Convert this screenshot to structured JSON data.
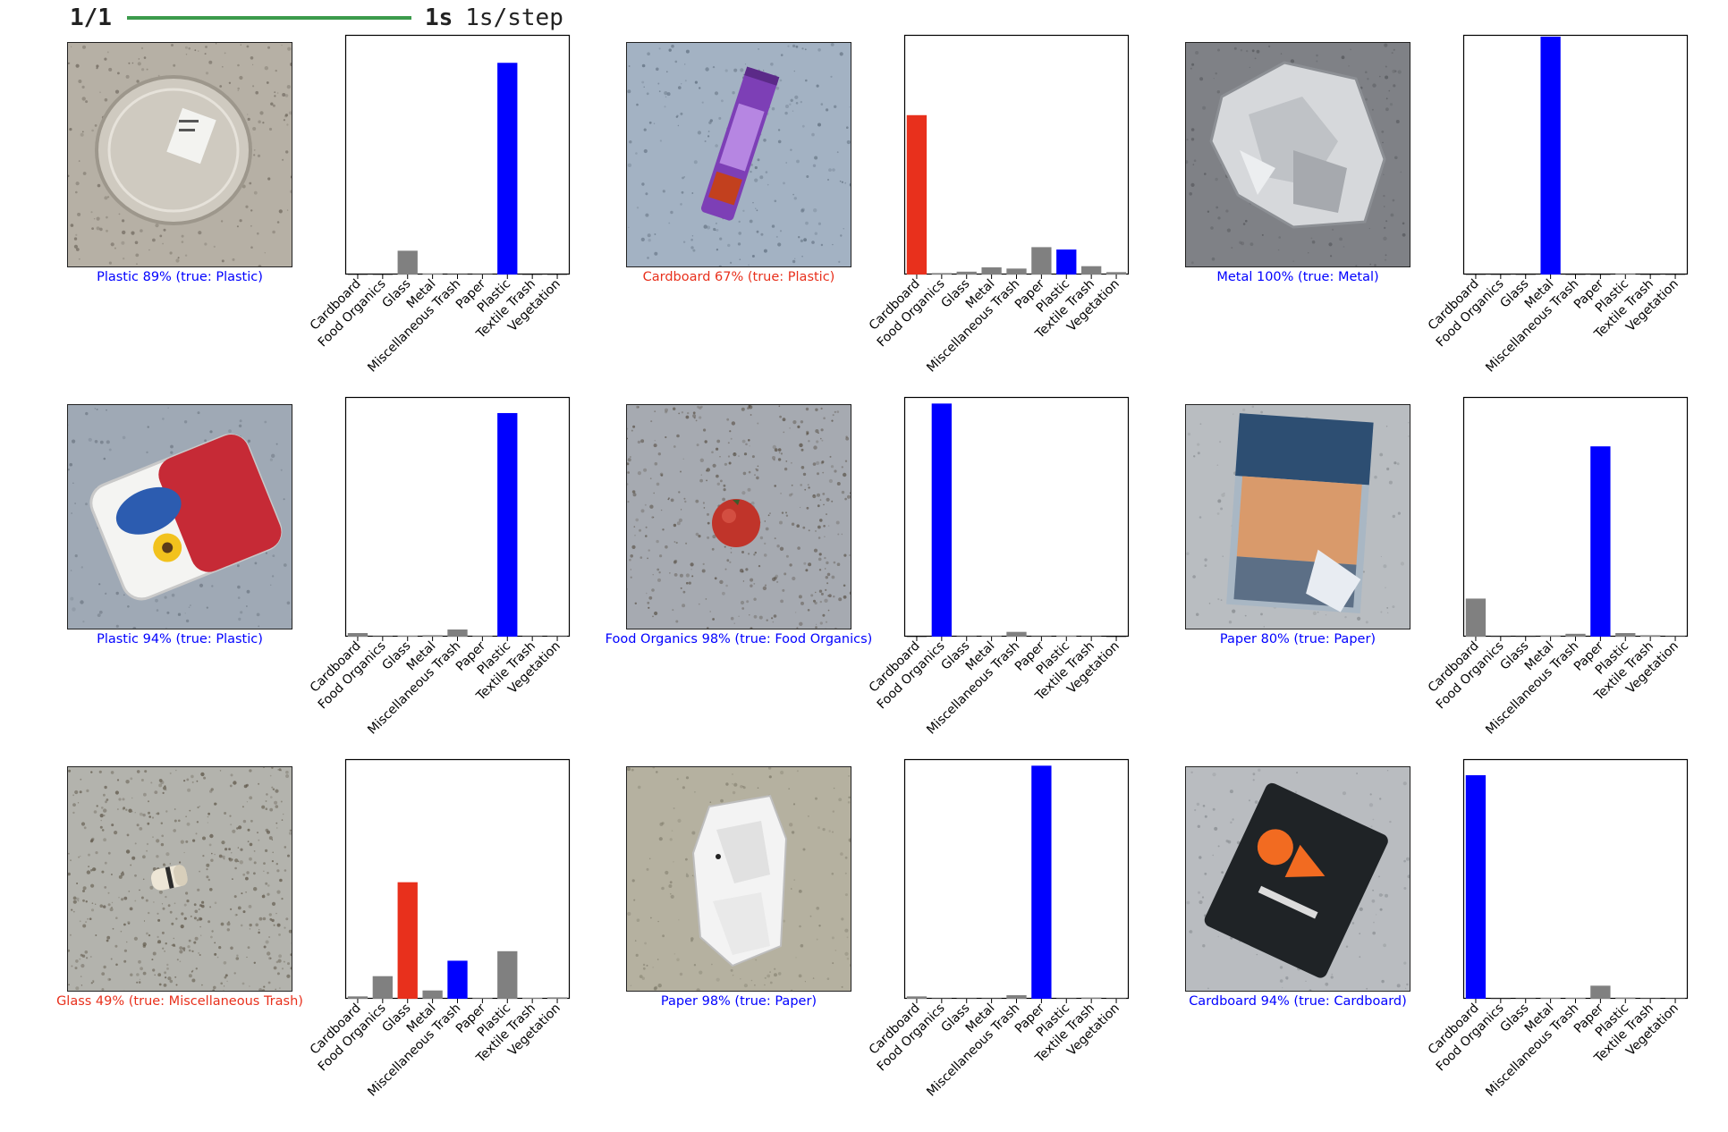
{
  "progress": {
    "steps": "1/1",
    "time": "1s",
    "rate": "1s/step",
    "fraction": 1.0,
    "bar_color": "#3c9b4c"
  },
  "colors": {
    "correct": "#0000ff",
    "wrong": "#e8301c",
    "other": "#808080"
  },
  "panels": [
    {
      "image": "clear-plastic-container",
      "caption": "Plastic 89% (true: Plastic)",
      "correct": true
    },
    {
      "image": "purple-snack-wrapper",
      "caption": "Cardboard 67% (true: Plastic)",
      "correct": false
    },
    {
      "image": "crumpled-aluminium-foil",
      "caption": "Metal 100% (true: Metal)",
      "correct": true
    },
    {
      "image": "flora-margarine-tub",
      "caption": "Plastic 94% (true: Plastic)",
      "correct": true
    },
    {
      "image": "tomato",
      "caption": "Food Organics 98% (true: Food Organics)",
      "correct": true
    },
    {
      "image": "travel-brochure",
      "caption": "Paper 80% (true: Paper)",
      "correct": true
    },
    {
      "image": "cigarette-butt",
      "caption": "Glass 49% (true: Miscellaneous Trash)",
      "correct": false
    },
    {
      "image": "crumpled-white-paper",
      "caption": "Paper 98% (true: Paper)",
      "correct": true
    },
    {
      "image": "boost-mobile-card",
      "caption": "Cardboard 94% (true: Cardboard)",
      "correct": true
    }
  ],
  "chart_data": {
    "type": "bar",
    "categories": [
      "Cardboard",
      "Food Organics",
      "Glass",
      "Metal",
      "Miscellaneous Trash",
      "Paper",
      "Plastic",
      "Textile Trash",
      "Vegetation"
    ],
    "ylim": [
      0,
      1
    ],
    "charts": [
      {
        "values": [
          0.0,
          0.0,
          0.1,
          0.004,
          0.002,
          0.002,
          0.89,
          0.0,
          0.0
        ],
        "predicted": 6,
        "true": 6
      },
      {
        "values": [
          0.67,
          0.006,
          0.012,
          0.03,
          0.025,
          0.115,
          0.105,
          0.035,
          0.01
        ],
        "predicted": 0,
        "true": 6
      },
      {
        "values": [
          0.0,
          0.0,
          0.0,
          1.0,
          0.0,
          0.0,
          0.003,
          0.0,
          0.0
        ],
        "predicted": 3,
        "true": 3
      },
      {
        "values": [
          0.015,
          0.002,
          0.004,
          0.006,
          0.03,
          0.003,
          0.94,
          0.002,
          0.002
        ],
        "predicted": 6,
        "true": 6
      },
      {
        "values": [
          0.0,
          0.98,
          0.002,
          0.003,
          0.02,
          0.002,
          0.004,
          0.002,
          0.0
        ],
        "predicted": 1,
        "true": 1
      },
      {
        "values": [
          0.16,
          0.001,
          0.001,
          0.005,
          0.012,
          0.8,
          0.015,
          0.006,
          0.002
        ],
        "predicted": 5,
        "true": 5
      },
      {
        "values": [
          0.01,
          0.095,
          0.49,
          0.035,
          0.16,
          0.003,
          0.2,
          0.004,
          0.006
        ],
        "predicted": 2,
        "true": 4
      },
      {
        "values": [
          0.01,
          0.002,
          0.002,
          0.002,
          0.015,
          0.98,
          0.002,
          0.005,
          0.002
        ],
        "predicted": 5,
        "true": 5
      },
      {
        "values": [
          0.94,
          0.001,
          0.002,
          0.004,
          0.004,
          0.055,
          0.005,
          0.002,
          0.002
        ],
        "predicted": 0,
        "true": 0
      }
    ]
  }
}
